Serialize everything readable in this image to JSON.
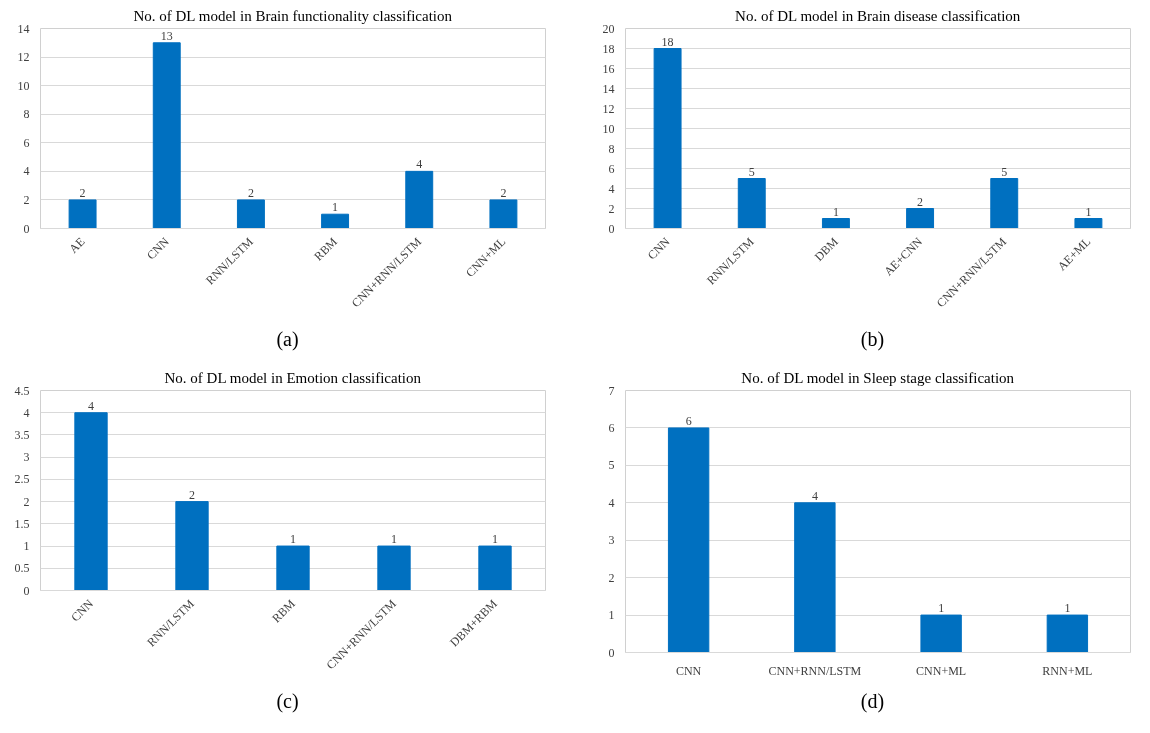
{
  "chart_data": [
    {
      "type": "bar",
      "title": "No. of DL model in Brain functionality classification",
      "categories": [
        "AE",
        "CNN",
        "RNN/LSTM",
        "RBM",
        "CNN+RNN/LSTM",
        "CNN+ML"
      ],
      "values": [
        2,
        13,
        2,
        1,
        4,
        2
      ],
      "color": "#0070c0",
      "ylim": [
        0,
        14
      ],
      "yticks": [
        0,
        2,
        4,
        6,
        8,
        10,
        12,
        14
      ],
      "grid": "y",
      "data_labels": true,
      "annotations": [
        "(a)"
      ]
    },
    {
      "type": "bar",
      "title": "No. of DL model in Brain disease classification",
      "categories": [
        "CNN",
        "RNN/LSTM",
        "DBM",
        "AE+CNN",
        "CNN+RNN/LSTM",
        "AE+ML"
      ],
      "values": [
        18,
        5,
        1,
        2,
        5,
        1
      ],
      "color": "#0070c0",
      "ylim": [
        0,
        20
      ],
      "yticks": [
        0,
        2,
        4,
        6,
        8,
        10,
        12,
        14,
        16,
        18,
        20
      ],
      "grid": "y",
      "data_labels": true,
      "annotations": [
        "(b)"
      ]
    },
    {
      "type": "bar",
      "title": "No. of DL model in Emotion classification",
      "categories": [
        "CNN",
        "RNN/LSTM",
        "RBM",
        "CNN+RNN/LSTM",
        "DBM+RBM"
      ],
      "values": [
        4,
        2,
        1,
        1,
        1
      ],
      "color": "#0070c0",
      "ylim": [
        0,
        4.5
      ],
      "yticks": [
        0,
        0.5,
        1,
        1.5,
        2,
        2.5,
        3,
        3.5,
        4,
        4.5
      ],
      "grid": "y",
      "data_labels": true,
      "annotations": [
        "(c)"
      ]
    },
    {
      "type": "bar",
      "title": "No. of DL model in Sleep stage classification",
      "categories": [
        "CNN",
        "CNN+RNN/LSTM",
        "CNN+ML",
        "RNN+ML"
      ],
      "values": [
        6,
        4,
        1,
        1
      ],
      "color": "#0070c0",
      "ylim": [
        0,
        7
      ],
      "yticks": [
        0,
        1,
        2,
        3,
        4,
        5,
        6,
        7
      ],
      "grid": "y",
      "data_labels": true,
      "annotations": [
        "(d)"
      ]
    }
  ]
}
